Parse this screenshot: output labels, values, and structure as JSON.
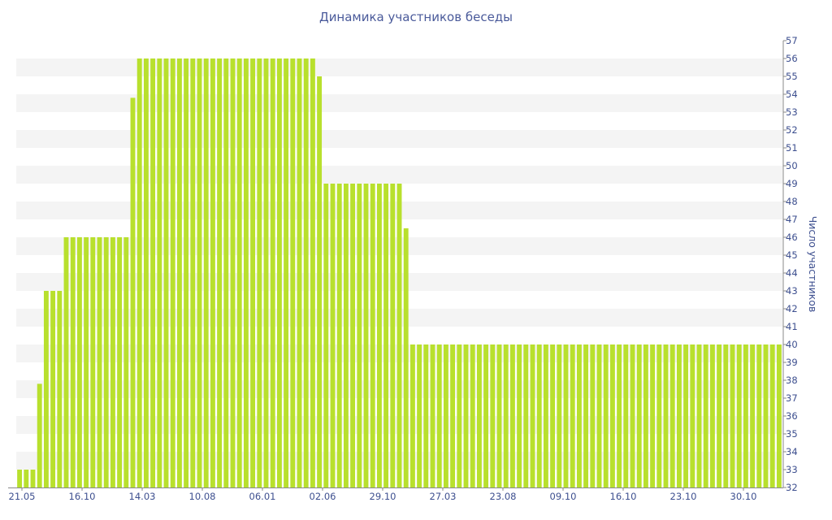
{
  "chart_data": {
    "type": "bar",
    "title": "Динамика участников беседы",
    "ylabel": "Число участников",
    "xlabel": "",
    "ylim": [
      32,
      57
    ],
    "y_axis_position": "right",
    "grid": "alternating horizontal bands",
    "bar_color": "#b8e02d",
    "band_color": "#f4f4f4",
    "axis_text_color": "#3d4f8f",
    "x_tick_labels": [
      "21.05",
      "16.10",
      "14.03",
      "10.08",
      "06.01",
      "02.06",
      "29.10",
      "27.03",
      "23.08",
      "09.10",
      "16.10",
      "23.10",
      "30.10"
    ],
    "y_ticks": [
      32,
      33,
      34,
      35,
      36,
      37,
      38,
      39,
      40,
      41,
      42,
      43,
      44,
      45,
      46,
      47,
      48,
      49,
      50,
      51,
      52,
      53,
      54,
      55,
      56,
      57
    ],
    "values": [
      33,
      33,
      33,
      37.8,
      43,
      43,
      43,
      46,
      46,
      46,
      46,
      46,
      46,
      46,
      46,
      46,
      46,
      53.8,
      56,
      56,
      56,
      56,
      56,
      56,
      56,
      56,
      56,
      56,
      56,
      56,
      56,
      56,
      56,
      56,
      56,
      56,
      56,
      56,
      56,
      56,
      56,
      56,
      56,
      56,
      56,
      55,
      49,
      49,
      49,
      49,
      49,
      49,
      49,
      49,
      49,
      49,
      49,
      49,
      46.5,
      40,
      40,
      40,
      40,
      40,
      40,
      40,
      40,
      40,
      40,
      40,
      40,
      40,
      40,
      40,
      40,
      40,
      40,
      40,
      40,
      40,
      40,
      40,
      40,
      40,
      40,
      40,
      40,
      40,
      40,
      40,
      40,
      40,
      40,
      40,
      40,
      40,
      40,
      40,
      40,
      40,
      40,
      40,
      40,
      40,
      40,
      40,
      40,
      40,
      40,
      40,
      40,
      40,
      40,
      40,
      40
    ]
  }
}
